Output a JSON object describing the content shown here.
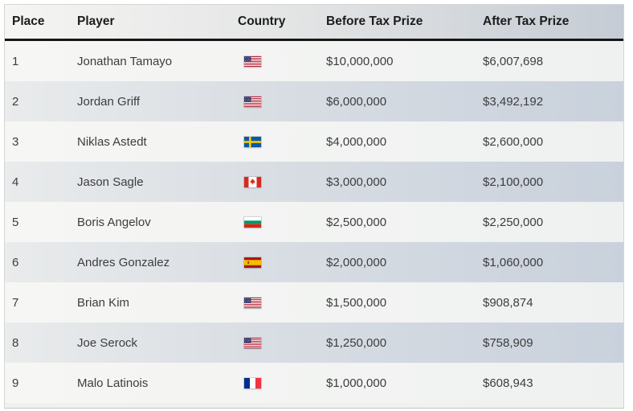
{
  "table": {
    "columns": [
      {
        "label": "Place"
      },
      {
        "label": "Player"
      },
      {
        "label": "Country"
      },
      {
        "label": "Before Tax Prize"
      },
      {
        "label": "After Tax Prize"
      }
    ],
    "rows": [
      {
        "place": "1",
        "player": "Jonathan Tamayo",
        "country_icon": "us-flag-icon",
        "before_tax": "$10,000,000",
        "after_tax": "$6,007,698"
      },
      {
        "place": "2",
        "player": "Jordan Griff",
        "country_icon": "us-flag-icon",
        "before_tax": "$6,000,000",
        "after_tax": "$3,492,192"
      },
      {
        "place": "3",
        "player": "Niklas Astedt",
        "country_icon": "sweden-flag-icon",
        "before_tax": "$4,000,000",
        "after_tax": "$2,600,000"
      },
      {
        "place": "4",
        "player": "Jason Sagle",
        "country_icon": "canada-flag-icon",
        "before_tax": "$3,000,000",
        "after_tax": "$2,100,000"
      },
      {
        "place": "5",
        "player": "Boris Angelov",
        "country_icon": "bulgaria-flag-icon",
        "before_tax": "$2,500,000",
        "after_tax": "$2,250,000"
      },
      {
        "place": "6",
        "player": "Andres Gonzalez",
        "country_icon": "spain-flag-icon",
        "before_tax": "$2,000,000",
        "after_tax": "$1,060,000"
      },
      {
        "place": "7",
        "player": "Brian Kim",
        "country_icon": "us-flag-icon",
        "before_tax": "$1,500,000",
        "after_tax": "$908,874"
      },
      {
        "place": "8",
        "player": "Joe Serock",
        "country_icon": "us-flag-icon",
        "before_tax": "$1,250,000",
        "after_tax": "$758,909"
      },
      {
        "place": "9",
        "player": "Malo Latinois",
        "country_icon": "france-flag-icon",
        "before_tax": "$1,000,000",
        "after_tax": "$608,943"
      }
    ]
  },
  "colors": {
    "header_gradient_left": "#f5f5f3",
    "header_gradient_right": "#c5ccd5",
    "stripe_gradient_left": "#e9ebec",
    "stripe_gradient_right": "#c9d1dc",
    "row_light": "#f4f5f4",
    "header_underline": "#161616",
    "text": "#3d3d3d"
  }
}
